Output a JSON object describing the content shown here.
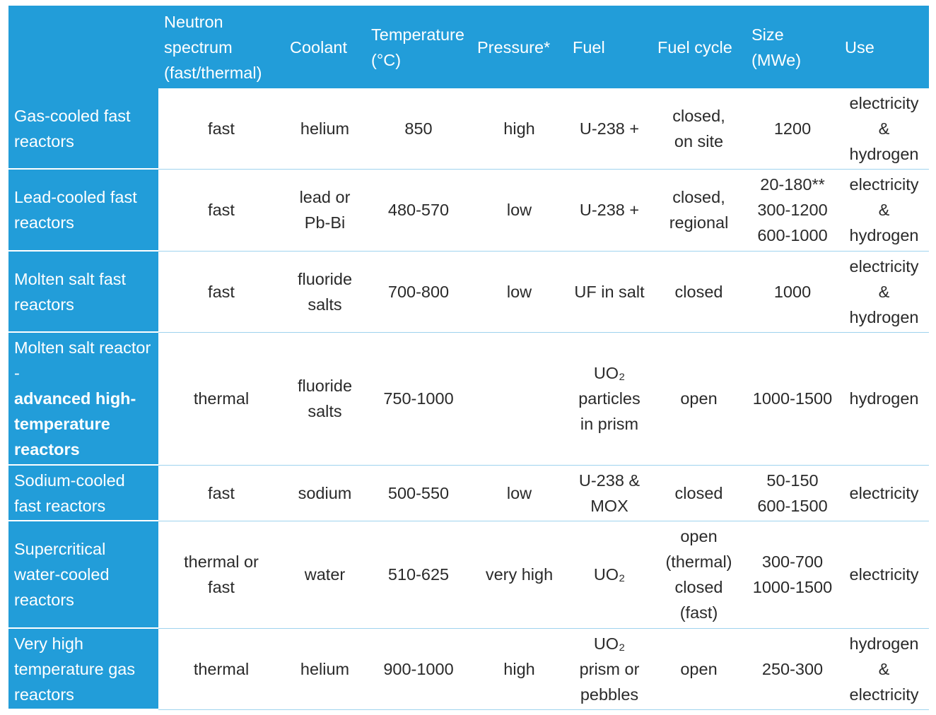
{
  "table": {
    "header": [
      "",
      "Neutron spectrum (fast/thermal)",
      "Coolant",
      "Temperature (°C)",
      "Pressure*",
      "Fuel",
      "Fuel cycle",
      "Size (MWe)",
      "Use"
    ],
    "rows": [
      {
        "label": "Gas-cooled fast reactors",
        "cells": [
          "fast",
          "helium",
          "850",
          "high",
          "U-238 +",
          "closed,\non site",
          "1200",
          "electricity\n&\nhydrogen"
        ]
      },
      {
        "label": "Lead-cooled fast reactors",
        "cells": [
          "fast",
          "lead or\nPb-Bi",
          "480-570",
          "low",
          "U-238 +",
          "closed,\nregional",
          "20-180**\n300-1200\n600-1000",
          "electricity\n&\nhydrogen"
        ]
      },
      {
        "label": "Molten salt fast reactors",
        "cells": [
          "fast",
          "fluoride\nsalts",
          "700-800",
          "low",
          "UF in salt",
          "closed",
          "1000",
          "electricity\n&\nhydrogen"
        ]
      },
      {
        "label": "Molten salt reactor -",
        "label_bold": "advanced high-temperature reactors",
        "cells": [
          "thermal",
          "fluoride\nsalts",
          "750-1000",
          "",
          "UO₂\nparticles\nin prism",
          "open",
          "1000-1500",
          "hydrogen"
        ]
      },
      {
        "label": "Sodium-cooled fast reactors",
        "cells": [
          "fast",
          "sodium",
          "500-550",
          "low",
          "U-238 &\nMOX",
          "closed",
          "50-150\n600-1500",
          "electricity"
        ]
      },
      {
        "label": "Supercritical water-cooled reactors",
        "cells": [
          "thermal or\nfast",
          "water",
          "510-625",
          "very high",
          "UO₂",
          "open\n(thermal)\nclosed\n(fast)",
          "300-700\n1000-1500",
          "electricity"
        ]
      },
      {
        "label": "Very high temperature gas reactors",
        "cells": [
          "thermal",
          "helium",
          "900-1000",
          "high",
          "UO₂\nprism or\npebbles",
          "open",
          "250-300",
          "hydrogen\n&\nelectricity"
        ]
      }
    ]
  }
}
